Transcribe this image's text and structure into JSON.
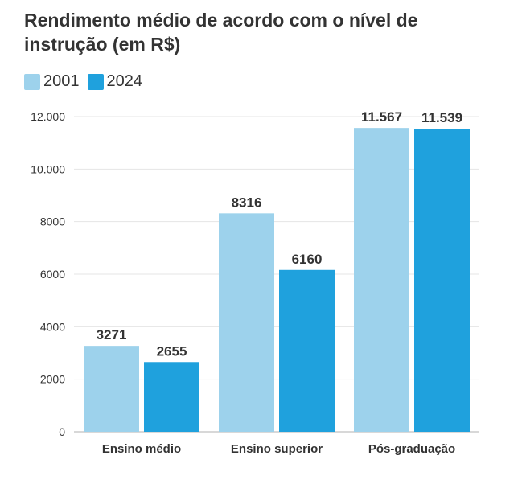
{
  "chart_data": {
    "type": "bar",
    "title": "Rendimento médio de acordo com o nível de instrução (em R$)",
    "xlabel": "",
    "ylabel": "",
    "categories": [
      "Ensino médio",
      "Ensino superior",
      "Pós-graduação"
    ],
    "series": [
      {
        "name": "2001",
        "color": "#9dd2ec",
        "values": [
          3271,
          8316,
          11567
        ],
        "value_labels": [
          "3271",
          "8316",
          "11.567"
        ]
      },
      {
        "name": "2024",
        "color": "#1fa1dd",
        "values": [
          2655,
          6160,
          11539
        ],
        "value_labels": [
          "2655",
          "6160",
          "11.539"
        ]
      }
    ],
    "ylim": [
      0,
      12000
    ],
    "yticks": [
      0,
      2000,
      4000,
      6000,
      8000,
      10000,
      12000
    ],
    "ytick_labels": [
      "0",
      "2000",
      "4000",
      "6000",
      "8000",
      "10.000",
      "12.000"
    ],
    "grid": true,
    "legend_position": "top-left"
  }
}
